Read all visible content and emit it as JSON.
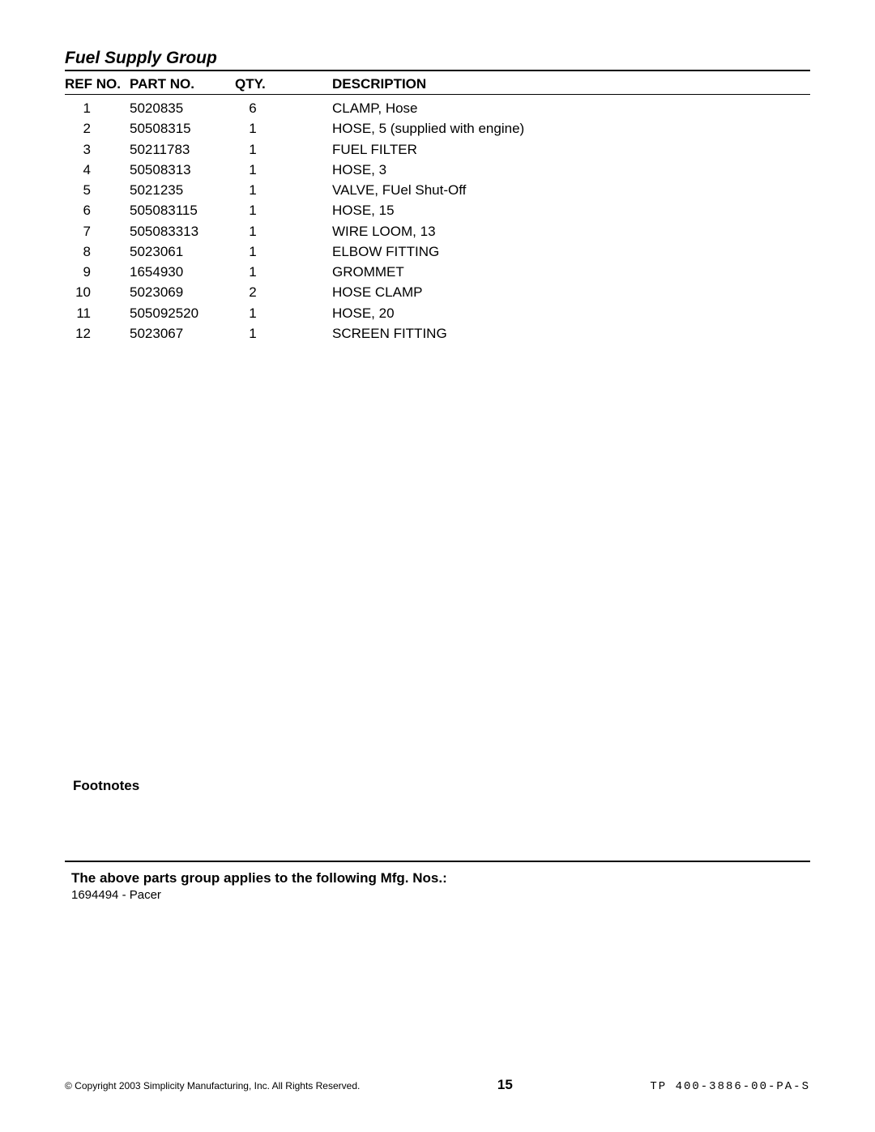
{
  "section_title": "Fuel Supply Group",
  "table": {
    "headers": {
      "ref": "REF No.",
      "part": "Part No.",
      "qty": "QTY.",
      "desc": "Description"
    },
    "rows": [
      {
        "ref": "1",
        "part": "5020835",
        "qty": "6",
        "desc": "CLAMP, Hose"
      },
      {
        "ref": "2",
        "part": "50508315",
        "qty": "1",
        "desc": "HOSE, 5  (supplied with engine)"
      },
      {
        "ref": "3",
        "part": "50211783",
        "qty": "1",
        "desc": "FUEL FILTER"
      },
      {
        "ref": "4",
        "part": "50508313",
        "qty": "1",
        "desc": "HOSE, 3"
      },
      {
        "ref": "5",
        "part": "5021235",
        "qty": "1",
        "desc": "VALVE, FUel Shut-Off"
      },
      {
        "ref": "6",
        "part": "505083115",
        "qty": "1",
        "desc": "HOSE, 15"
      },
      {
        "ref": "7",
        "part": "505083313",
        "qty": "1",
        "desc": "WIRE LOOM, 13"
      },
      {
        "ref": "8",
        "part": "5023061",
        "qty": "1",
        "desc": "ELBOW FITTING"
      },
      {
        "ref": "9",
        "part": "1654930",
        "qty": "1",
        "desc": "GROMMET"
      },
      {
        "ref": "10",
        "part": "5023069",
        "qty": "2",
        "desc": "HOSE CLAMP"
      },
      {
        "ref": "11",
        "part": "505092520",
        "qty": "1",
        "desc": "HOSE, 20"
      },
      {
        "ref": "12",
        "part": "5023067",
        "qty": "1",
        "desc": "SCREEN FITTING"
      }
    ]
  },
  "footnotes_label": "Footnotes",
  "mfg": {
    "heading": "The above parts group applies to the following Mfg. Nos.:",
    "items": [
      "1694494 - Pacer"
    ]
  },
  "footer": {
    "copyright": "© Copyright 2003 Simplicity Manufacturing, Inc. All Rights Reserved.",
    "page_number": "15",
    "doc_code": "TP 400-3886-00-PA-S"
  }
}
